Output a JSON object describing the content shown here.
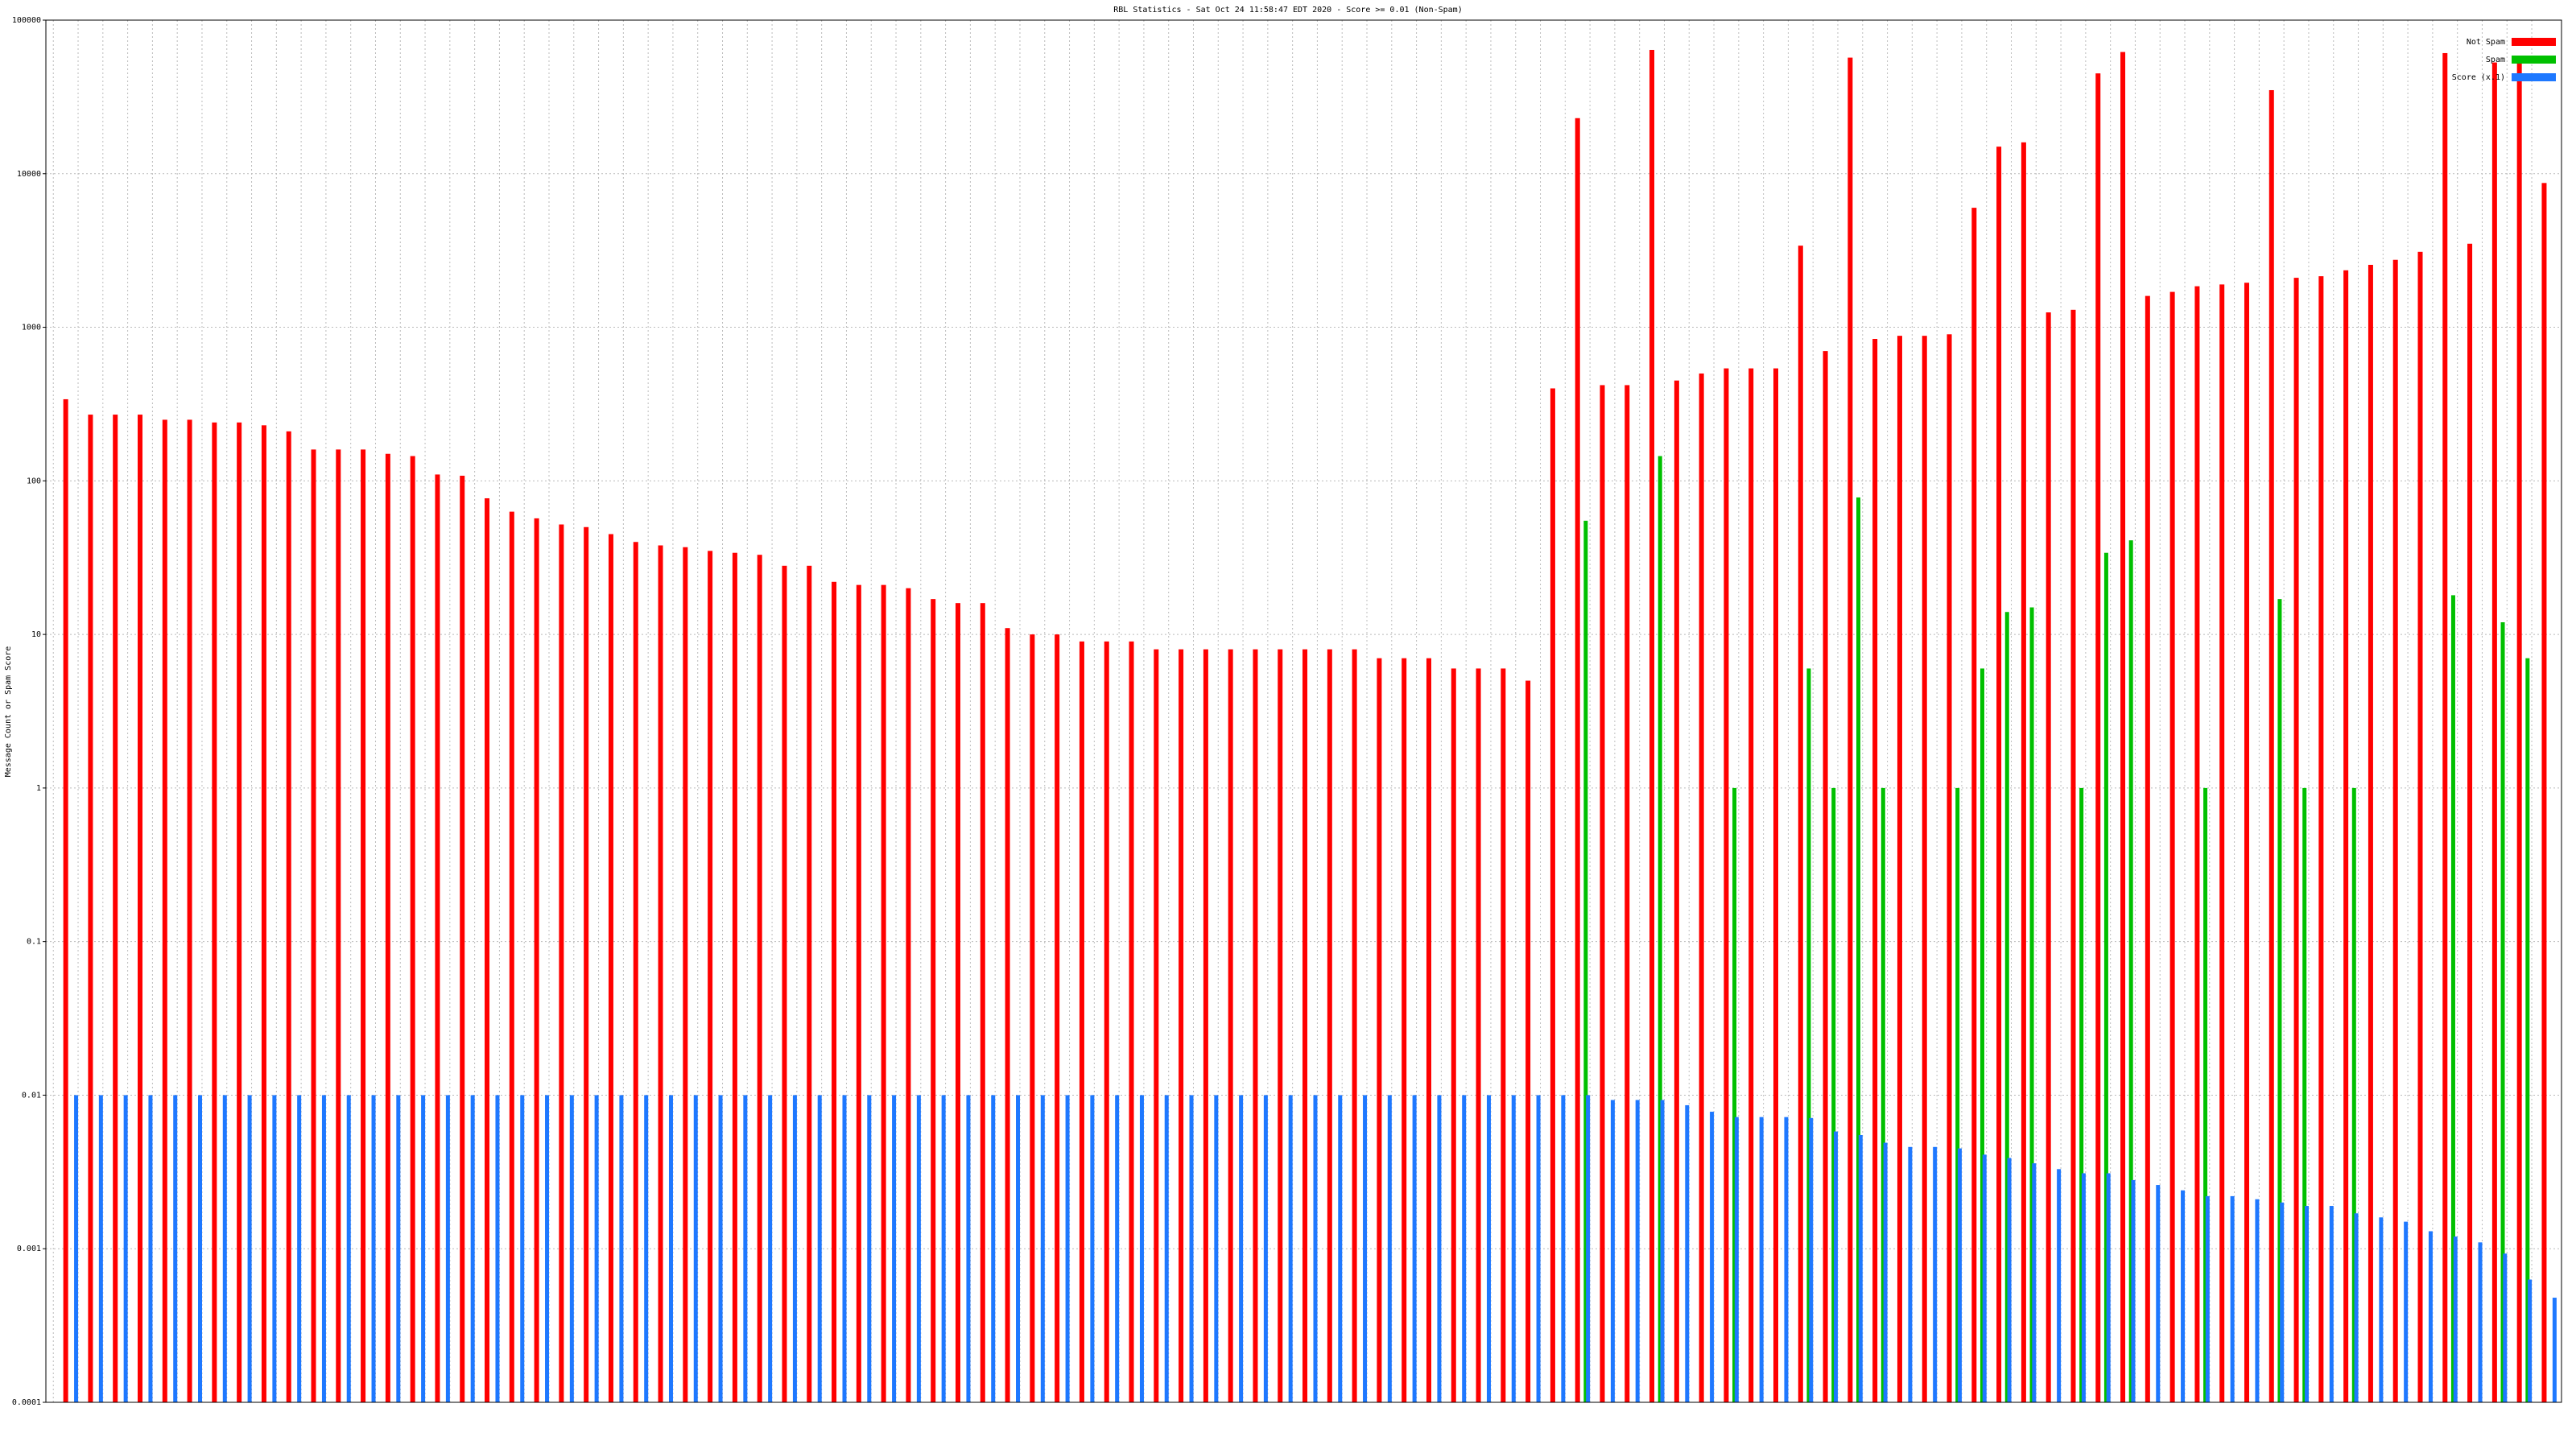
{
  "chart_data": {
    "type": "bar",
    "title": "RBL Statistics - Sat Oct 24 11:58:47 EDT 2020 - Score >= 0.01 (Non-Spam)",
    "y_label": "Message Count or Spam Score",
    "log_scale": true,
    "grid": true,
    "legend": "top-right",
    "ylim": [
      0.0001,
      100000
    ],
    "yticks": [
      0.0001,
      0.001,
      0.01,
      0.1,
      1,
      10,
      100,
      1000,
      10000,
      100000
    ],
    "categories": [
      null,
      null,
      null,
      null,
      null,
      null,
      null,
      null,
      null,
      null,
      null,
      null,
      null,
      null,
      null,
      null,
      null,
      null,
      null,
      null,
      null,
      null,
      null,
      null,
      null,
      null,
      null,
      null,
      null,
      null,
      null,
      null,
      null,
      null,
      null,
      null,
      null,
      null,
      null,
      null,
      null,
      null,
      null,
      null,
      null,
      null,
      null,
      null,
      null,
      null,
      null,
      null,
      null,
      null,
      null,
      null,
      null,
      null,
      null,
      null,
      null,
      null,
      null,
      null,
      null,
      null,
      null,
      null,
      null,
      null,
      null,
      null,
      null,
      null,
      null,
      null,
      null,
      null,
      null,
      null,
      null,
      null,
      null,
      null,
      null,
      null,
      null,
      null,
      null,
      null,
      null,
      null,
      null,
      null,
      null,
      null,
      null,
      null,
      null,
      null,
      null
    ],
    "series": [
      {
        "name": "Not Spam",
        "color": "#ff0000",
        "values": [
          340,
          270,
          270,
          270,
          250,
          250,
          240,
          240,
          230,
          210,
          160,
          160,
          160,
          150,
          145,
          110,
          108,
          77,
          63,
          57,
          52,
          50,
          45,
          40,
          38,
          37,
          35,
          34,
          33,
          28,
          28,
          22,
          21,
          21,
          20,
          17,
          16,
          16,
          11,
          10,
          10,
          9,
          9,
          9,
          8,
          8,
          8,
          8,
          8,
          8,
          8,
          8,
          8,
          7,
          7,
          7,
          6,
          6,
          6,
          5,
          400,
          23000,
          420,
          420,
          64000,
          450,
          500,
          540,
          540,
          540,
          3400,
          700,
          57000,
          840,
          880,
          880,
          900,
          6000,
          15000,
          16000,
          1250,
          1300,
          45000,
          62000,
          1600,
          1700,
          1850,
          1900,
          1950,
          35000,
          2100,
          2150,
          2350,
          2550,
          2750,
          3100,
          61000,
          3500,
          53000,
          53000,
          8700
        ]
      },
      {
        "name": "Spam",
        "color": "#00c000",
        "values": [
          null,
          null,
          null,
          null,
          null,
          null,
          null,
          null,
          null,
          null,
          null,
          null,
          null,
          null,
          null,
          null,
          null,
          null,
          null,
          null,
          null,
          null,
          null,
          null,
          null,
          null,
          null,
          null,
          null,
          null,
          null,
          null,
          null,
          null,
          null,
          null,
          null,
          null,
          null,
          null,
          null,
          null,
          null,
          null,
          null,
          null,
          null,
          null,
          null,
          null,
          null,
          null,
          null,
          null,
          null,
          null,
          null,
          null,
          null,
          null,
          null,
          55,
          null,
          null,
          145,
          null,
          null,
          1,
          null,
          null,
          6,
          1,
          78,
          1,
          null,
          null,
          1,
          6,
          14,
          15,
          null,
          1,
          34,
          41,
          null,
          null,
          1,
          null,
          null,
          17,
          1,
          null,
          1,
          null,
          null,
          null,
          18,
          null,
          12,
          7,
          null
        ]
      },
      {
        "name": "Score (x.1)",
        "color": "#1e78ff",
        "values": [
          0.01,
          0.01,
          0.01,
          0.01,
          0.01,
          0.01,
          0.01,
          0.01,
          0.01,
          0.01,
          0.01,
          0.01,
          0.01,
          0.01,
          0.01,
          0.01,
          0.01,
          0.01,
          0.01,
          0.01,
          0.01,
          0.01,
          0.01,
          0.01,
          0.01,
          0.01,
          0.01,
          0.01,
          0.01,
          0.01,
          0.01,
          0.01,
          0.01,
          0.01,
          0.01,
          0.01,
          0.01,
          0.01,
          0.01,
          0.01,
          0.01,
          0.01,
          0.01,
          0.01,
          0.01,
          0.01,
          0.01,
          0.01,
          0.01,
          0.01,
          0.01,
          0.01,
          0.01,
          0.01,
          0.01,
          0.01,
          0.01,
          0.01,
          0.01,
          0.01,
          0.01,
          0.01,
          0.0093,
          0.0093,
          0.0093,
          0.0086,
          0.0078,
          0.0072,
          0.0072,
          0.0072,
          0.0071,
          0.0058,
          0.0055,
          0.0049,
          0.0046,
          0.0046,
          0.0045,
          0.0041,
          0.0039,
          0.0036,
          0.0033,
          0.0031,
          0.0031,
          0.0028,
          0.0026,
          0.0024,
          0.0022,
          0.0022,
          0.0021,
          0.002,
          0.0019,
          0.0019,
          0.0017,
          0.0016,
          0.0015,
          0.0013,
          0.0012,
          0.0011,
          0.00093,
          0.00063,
          0.00048
        ]
      }
    ]
  }
}
